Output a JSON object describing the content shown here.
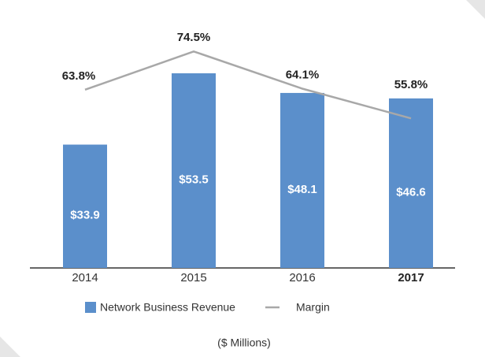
{
  "chart_data": {
    "type": "bar",
    "categories": [
      "2014",
      "2015",
      "2016",
      "2017"
    ],
    "series": [
      {
        "name": "Network Business Revenue",
        "type": "bar",
        "color": "#5b8fcb",
        "values": [
          33.9,
          53.5,
          48.1,
          46.6
        ],
        "value_labels": [
          "$33.9",
          "$53.5",
          "$48.1",
          "$46.6"
        ]
      },
      {
        "name": "Margin",
        "type": "line",
        "axis": "y2",
        "color": "#a8a8a8",
        "values": [
          63.8,
          74.5,
          64.1,
          55.8
        ],
        "value_labels": [
          "63.8%",
          "74.5%",
          "64.1%",
          "55.8%"
        ]
      }
    ],
    "ylim": [
      0,
      60
    ],
    "y2lim": [
      14,
      75
    ],
    "legend": "bottom",
    "note": "($ Millions)"
  }
}
